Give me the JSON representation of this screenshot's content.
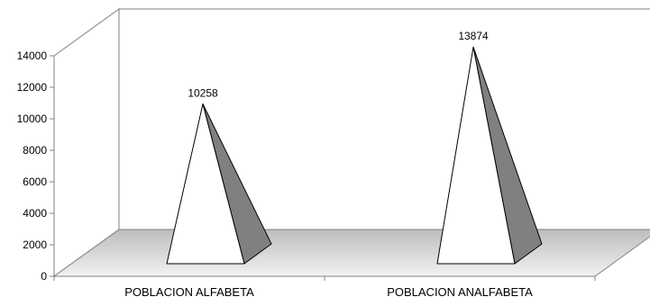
{
  "chart_data": {
    "type": "bar",
    "bar_shape": "pyramid",
    "three_d": true,
    "categories": [
      "POBLACION ALFABETA",
      "POBLACION ANALFABETA"
    ],
    "values": [
      10258,
      13874
    ],
    "data_labels": [
      "10258",
      "13874"
    ],
    "yticks": [
      "0",
      "2000",
      "4000",
      "6000",
      "8000",
      "10000",
      "12000",
      "14000"
    ],
    "ylim": [
      0,
      14000
    ],
    "title": "",
    "xlabel": "",
    "ylabel": "",
    "grid": false,
    "legend": "none",
    "colors": {
      "front_face": "#ffffff",
      "side_face": "#808080",
      "floor_light": "#f2f2f2",
      "floor_dark": "#bdbdbd",
      "axis": "#808080"
    }
  }
}
